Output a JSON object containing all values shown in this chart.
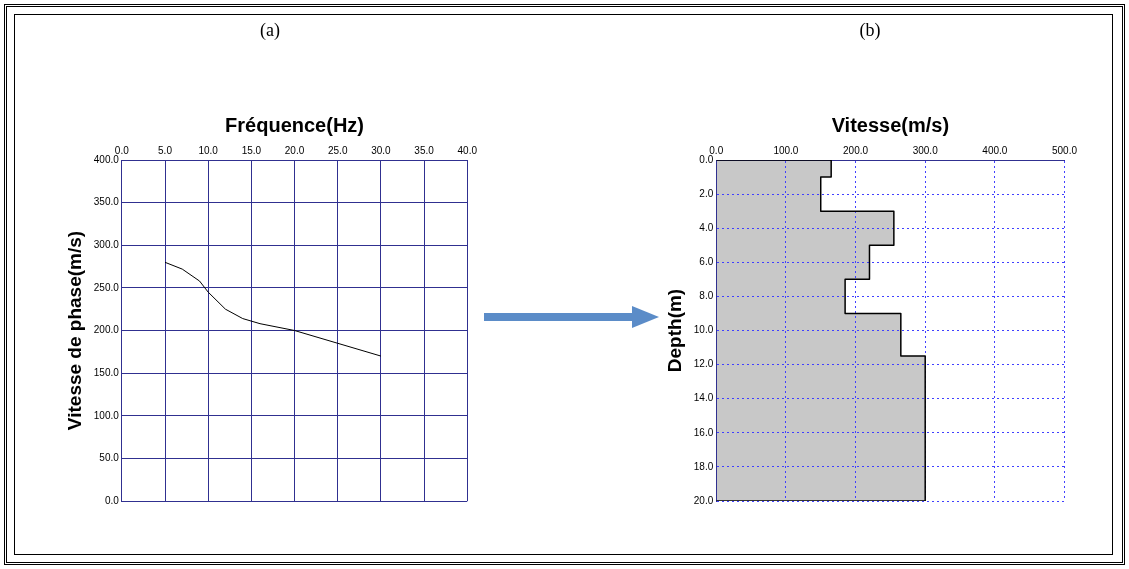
{
  "chart_data": [
    {
      "type": "line",
      "title": "(a)",
      "xlabel": "Fréquence(Hz)",
      "ylabel": "Vitesse de phase(m/s)",
      "x": [
        5,
        7,
        9,
        10,
        12,
        14,
        16,
        20,
        25,
        30
      ],
      "series": [
        {
          "color": "#000000",
          "values": [
            280,
            272,
            258,
            245,
            225,
            214,
            208,
            200,
            185,
            170
          ]
        }
      ],
      "xlim": [
        0,
        40
      ],
      "xticks": [
        {
          "value": 0,
          "label": "0.0"
        },
        {
          "value": 5,
          "label": "5.0"
        },
        {
          "value": 10,
          "label": "10.0"
        },
        {
          "value": 15,
          "label": "15.0"
        },
        {
          "value": 20,
          "label": "20.0"
        },
        {
          "value": 25,
          "label": "25.0"
        },
        {
          "value": 30,
          "label": "30.0"
        },
        {
          "value": 35,
          "label": "35.0"
        },
        {
          "value": 40,
          "label": "40.0"
        }
      ],
      "ylim": [
        0,
        400
      ],
      "yticks": [
        {
          "value": 0,
          "label": "0.0"
        },
        {
          "value": 50,
          "label": "50.0"
        },
        {
          "value": 100,
          "label": "100.0"
        },
        {
          "value": 150,
          "label": "150.0"
        },
        {
          "value": 200,
          "label": "200.0"
        },
        {
          "value": 250,
          "label": "250.0"
        },
        {
          "value": 300,
          "label": "300.0"
        },
        {
          "value": 350,
          "label": "350.0"
        },
        {
          "value": 400,
          "label": "400.0"
        }
      ],
      "grid": true,
      "legend": false
    },
    {
      "type": "area",
      "title": "(b)",
      "xlabel": "Vitesse(m/s)",
      "ylabel": "Depth(m)",
      "series": [
        {
          "color": "#c8c8c8",
          "x": [
            0,
            165,
            165,
            150,
            150,
            255,
            255,
            220,
            220,
            185,
            185,
            265,
            265,
            300,
            300,
            0
          ],
          "values": [
            0,
            0,
            1,
            1,
            3,
            3,
            5,
            5,
            7,
            7,
            9,
            9,
            11.5,
            11.5,
            20,
            20
          ]
        }
      ],
      "xlim": [
        0,
        500
      ],
      "xticks": [
        {
          "value": 0,
          "label": "0.0"
        },
        {
          "value": 100,
          "label": "100.0"
        },
        {
          "value": 200,
          "label": "200.0"
        },
        {
          "value": 300,
          "label": "300.0"
        },
        {
          "value": 400,
          "label": "400.0"
        },
        {
          "value": 500,
          "label": "500.0"
        }
      ],
      "ylim": [
        20,
        0
      ],
      "yticks": [
        {
          "value": 0,
          "label": "0.0"
        },
        {
          "value": 2,
          "label": "2.0"
        },
        {
          "value": 4,
          "label": "4.0"
        },
        {
          "value": 6,
          "label": "6.0"
        },
        {
          "value": 8,
          "label": "8.0"
        },
        {
          "value": 10,
          "label": "10.0"
        },
        {
          "value": 12,
          "label": "12.0"
        },
        {
          "value": 14,
          "label": "14.0"
        },
        {
          "value": 16,
          "label": "16.0"
        },
        {
          "value": 18,
          "label": "18.0"
        },
        {
          "value": 20,
          "label": "20.0"
        }
      ],
      "grid": true,
      "legend": false
    }
  ]
}
